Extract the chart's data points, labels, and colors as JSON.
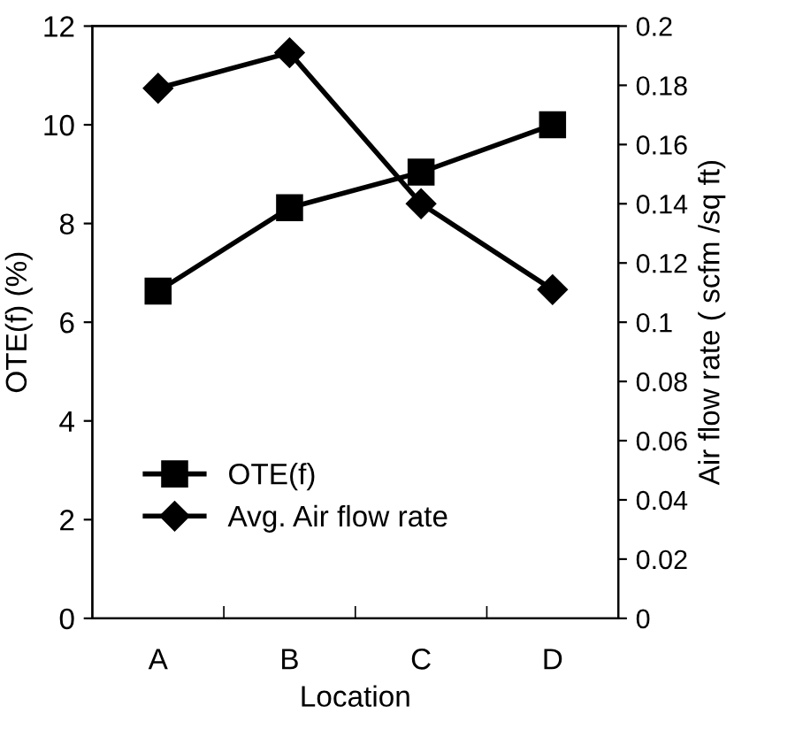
{
  "chart_data": {
    "type": "line",
    "xlabel": "Location",
    "ylabel": "OTE(f) (%)",
    "y2label": "Air flow rate ( scfm /sq ft)",
    "categories": [
      "A",
      "B",
      "C",
      "D"
    ],
    "series": [
      {
        "name": "OTE(f)",
        "color": "#000000",
        "marker": "square",
        "values": [
          6.63,
          8.32,
          9.04,
          10.0
        ]
      },
      {
        "name": "Avg. Air flow rate",
        "color": "#000000",
        "marker": "diamond",
        "axis": "y2",
        "values": [
          0.179,
          0.191,
          0.14,
          0.111
        ]
      }
    ],
    "ylim": [
      0,
      12
    ],
    "yticks": [
      0,
      2,
      4,
      6,
      8,
      10,
      12
    ],
    "y2lim": [
      0,
      0.2
    ],
    "y2ticks": [
      0,
      0.02,
      0.04,
      0.06,
      0.08,
      0.1,
      0.12,
      0.14,
      0.16,
      0.18,
      0.2
    ],
    "legend": "bottom left",
    "grid": false,
    "line_style": "solid"
  }
}
